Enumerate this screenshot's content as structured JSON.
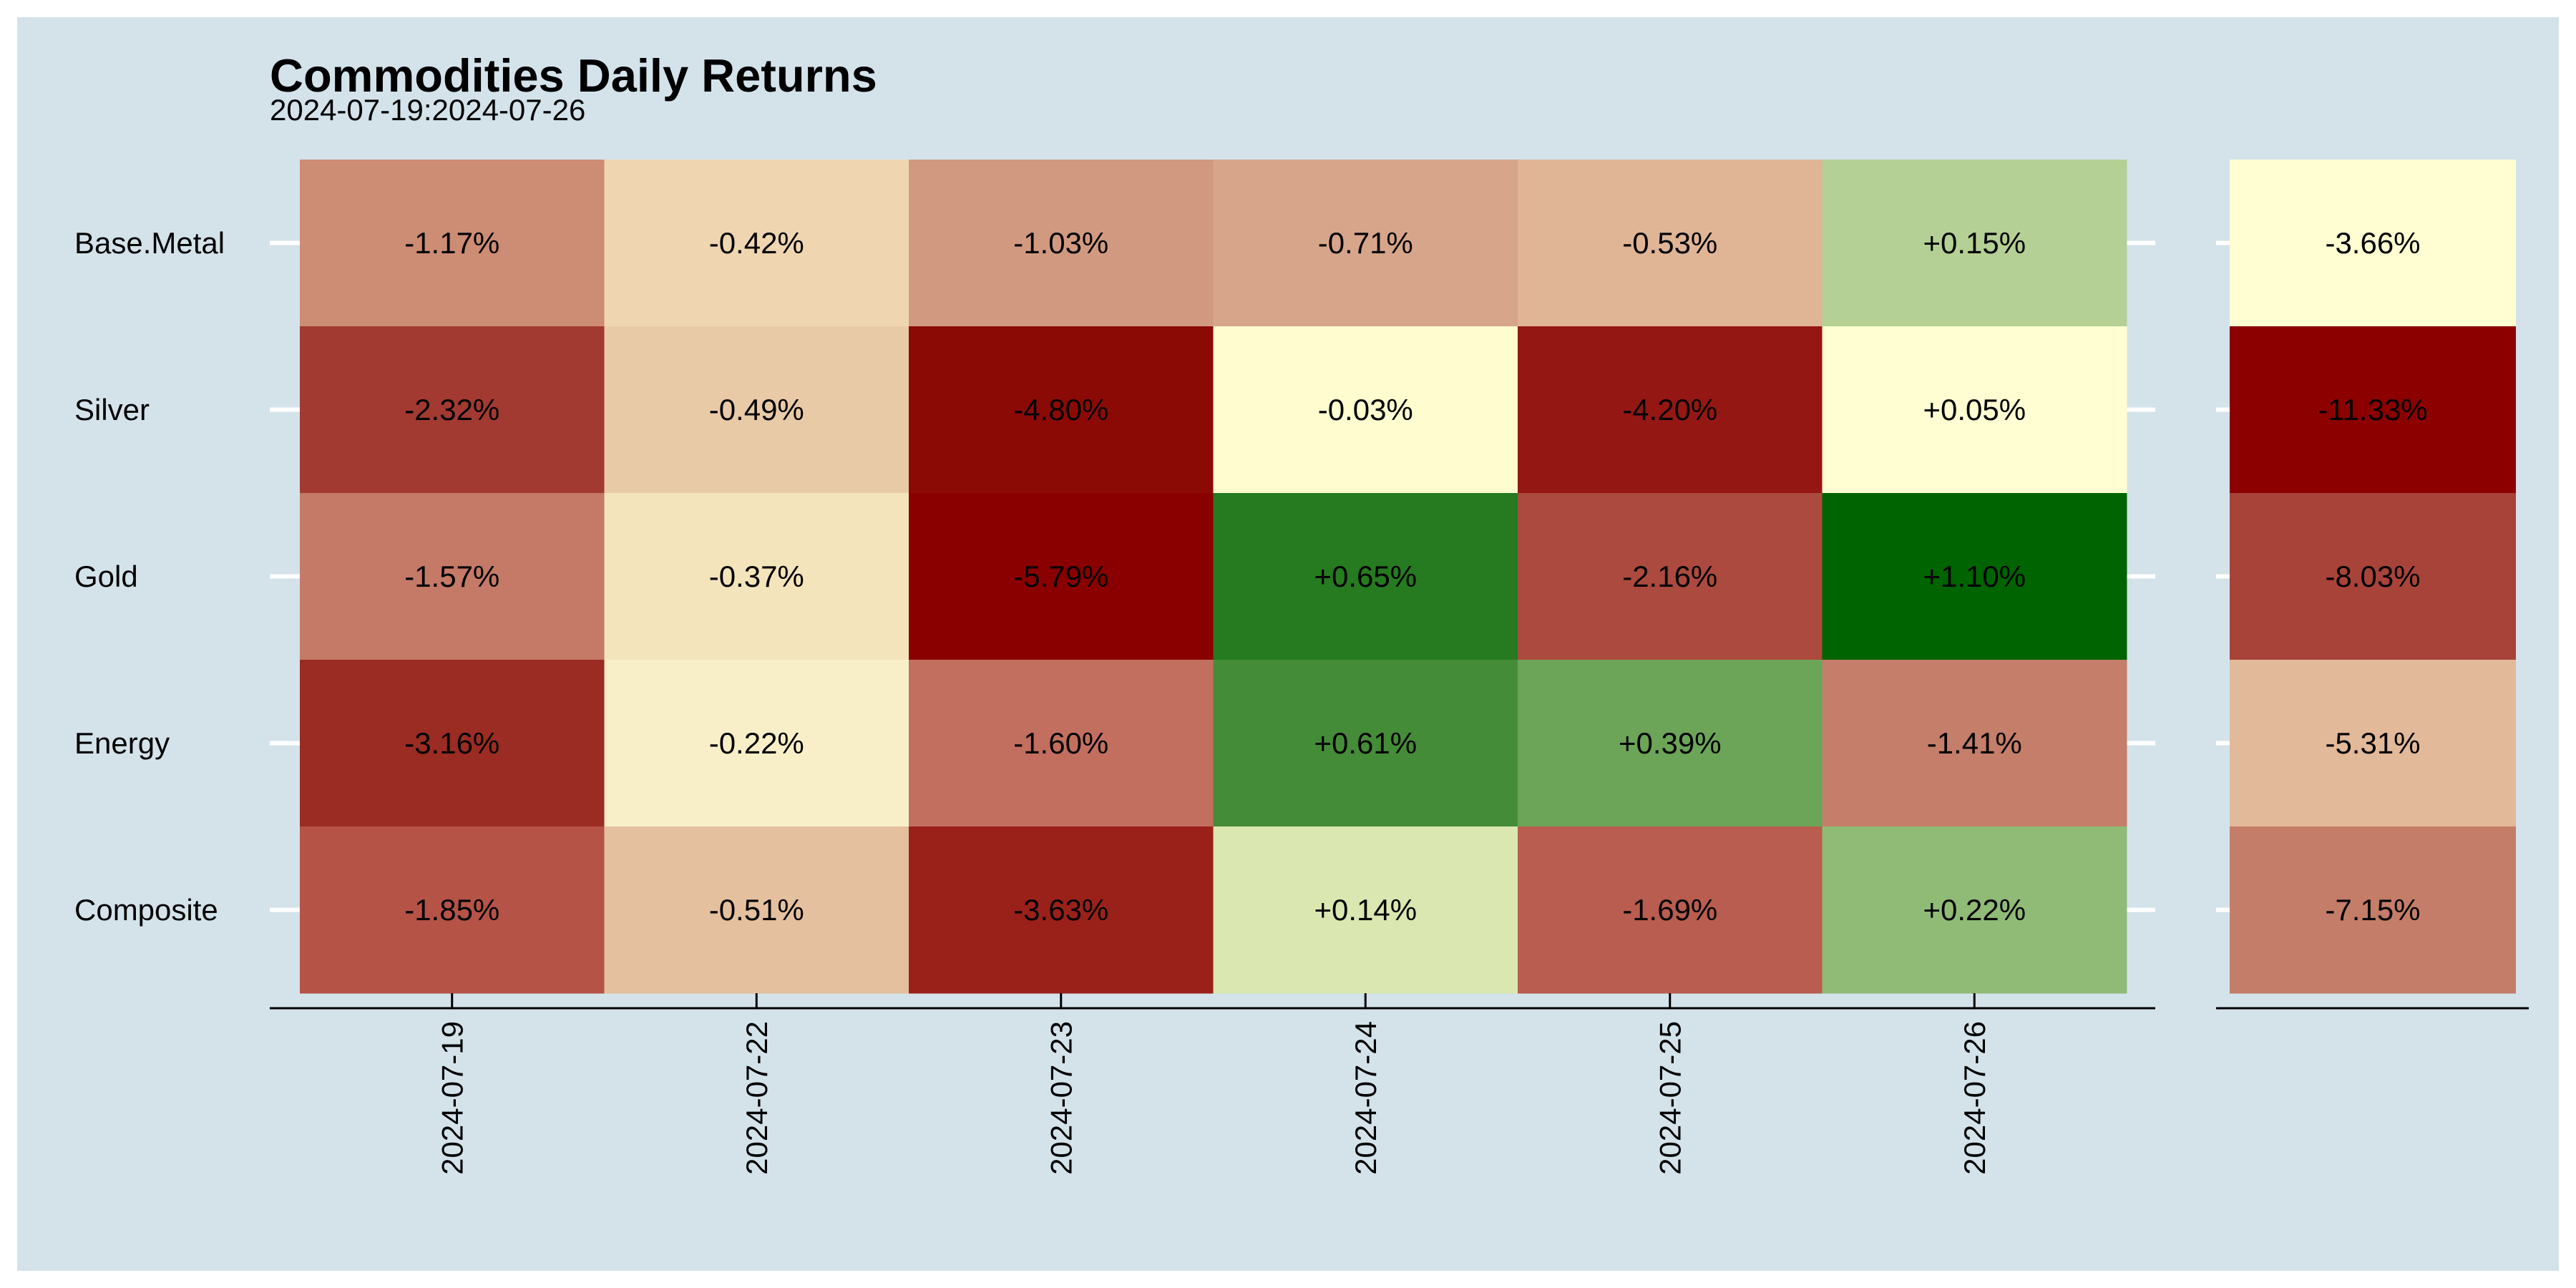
{
  "chart_data": {
    "type": "heatmap",
    "title": "Commodities Daily Returns",
    "subtitle": "2024-07-19:2024-07-26",
    "rows": [
      "Base.Metal",
      "Silver",
      "Gold",
      "Energy",
      "Composite"
    ],
    "columns": [
      "2024-07-19",
      "2024-07-22",
      "2024-07-23",
      "2024-07-24",
      "2024-07-25",
      "2024-07-26"
    ],
    "values": [
      [
        -1.17,
        -0.42,
        -1.03,
        -0.71,
        -0.53,
        0.15
      ],
      [
        -2.32,
        -0.49,
        -4.8,
        -0.03,
        -4.2,
        0.05
      ],
      [
        -1.57,
        -0.37,
        -5.79,
        0.65,
        -2.16,
        1.1
      ],
      [
        -3.16,
        -0.22,
        -1.6,
        0.61,
        0.39,
        -1.41
      ],
      [
        -1.85,
        -0.51,
        -3.63,
        0.14,
        -1.69,
        0.22
      ]
    ],
    "labels": [
      [
        "-1.17%",
        "-0.42%",
        "-1.03%",
        "-0.71%",
        "-0.53%",
        "+0.15%"
      ],
      [
        "-2.32%",
        "-0.49%",
        "-4.80%",
        "-0.03%",
        "-4.20%",
        "+0.05%"
      ],
      [
        "-1.57%",
        "-0.37%",
        "-5.79%",
        "+0.65%",
        "-2.16%",
        "+1.10%"
      ],
      [
        "-3.16%",
        "-0.22%",
        "-1.60%",
        "+0.61%",
        "+0.39%",
        "-1.41%"
      ],
      [
        "-1.85%",
        "-0.51%",
        "-3.63%",
        "+0.14%",
        "-1.69%",
        "+0.22%"
      ]
    ],
    "total_values": [
      -3.66,
      -11.33,
      -8.03,
      -5.31,
      -7.15
    ],
    "total_labels": [
      "-3.66%",
      "-11.33%",
      "-8.03%",
      "-5.31%",
      "-7.15%"
    ],
    "cell_colors": [
      [
        "#cd8c74",
        "#efd6b0",
        "#d19a80",
        "#d7a68a",
        "#dfb596",
        "#b4d094"
      ],
      [
        "#a23a32",
        "#e9caa7",
        "#8c0a06",
        "#fffccf",
        "#951714",
        "#fffdd1"
      ],
      [
        "#c47a67",
        "#f4e4bc",
        "#8a0000",
        "#267a1f",
        "#ac4a3f",
        "#006400"
      ],
      [
        "#9b2c23",
        "#f8efc8",
        "#c36f60",
        "#458c38",
        "#6ca558",
        "#c47e69"
      ],
      [
        "#b55347",
        "#e5c09e",
        "#9a211a",
        "#dae7b0",
        "#b85d4f",
        "#8fbb77"
      ]
    ],
    "total_colors": [
      "#fffdd1",
      "#8c0000",
      "#a8433a",
      "#e2b999",
      "#c47d68"
    ],
    "grid": false,
    "colors": {
      "panel_background": "#d4e3ea",
      "positive": "#006400",
      "neutral": "#fffdd1",
      "negative": "#8b0000"
    }
  }
}
